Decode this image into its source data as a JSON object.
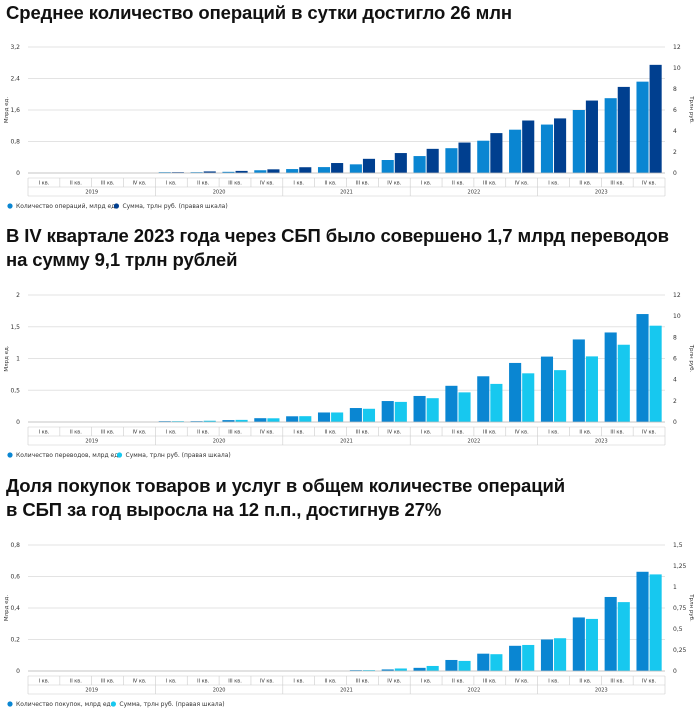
{
  "colors": {
    "dark_blue": "#003f8f",
    "mid_blue": "#0a86d2",
    "cyan": "#17c8ef",
    "grid": "#e3e3e3",
    "text": "#333333"
  },
  "quarters": [
    "I кв.",
    "II кв.",
    "III кв.",
    "IV кв."
  ],
  "years": [
    "2019",
    "2020",
    "2021",
    "2022",
    "2023"
  ],
  "chart_data": [
    {
      "type": "bar",
      "title": "Среднее количество операций в сутки достигло 26 млн",
      "ylabel": "Млрд ед.",
      "y2label": "Трлн руб.",
      "ylim": [
        0,
        3.2
      ],
      "y_ticks": [
        "0",
        "0,8",
        "1,6",
        "2,4",
        "3,2"
      ],
      "y2lim": [
        0,
        12
      ],
      "y2_ticks": [
        "0",
        "2",
        "4",
        "6",
        "8",
        "10",
        "12"
      ],
      "series": [
        {
          "name": "Количество операций, млрд ед.",
          "color": "#0a86d2",
          "axis": "left",
          "values": [
            0,
            0,
            0,
            0,
            0.002,
            0.01,
            0.03,
            0.07,
            0.1,
            0.15,
            0.22,
            0.33,
            0.43,
            0.63,
            0.82,
            1.1,
            1.23,
            1.6,
            1.9,
            2.32
          ]
        },
        {
          "name": "Сумма, трлн руб. (правая шкала)",
          "color": "#003f8f",
          "axis": "right",
          "values": [
            0,
            0,
            0,
            0,
            0.05,
            0.15,
            0.2,
            0.35,
            0.55,
            0.95,
            1.35,
            1.9,
            2.3,
            2.9,
            3.8,
            5.0,
            5.2,
            6.9,
            8.2,
            10.3
          ]
        }
      ]
    },
    {
      "type": "bar",
      "title": "В IV квартале 2023 года через СБП было совершено 1,7 млрд переводов на сумму 9,1 трлн рублей",
      "title_lines": [
        "В IV квартале 2023 года через СБП было совершено 1,7 млрд переводов",
        "на сумму 9,1 трлн рублей"
      ],
      "ylabel": "Млрд ед.",
      "y2label": "Трлн руб.",
      "ylim": [
        0,
        2
      ],
      "y_ticks": [
        "0",
        "0,5",
        "1",
        "1,5",
        "2"
      ],
      "y2lim": [
        0,
        12
      ],
      "y2_ticks": [
        "0",
        "2",
        "4",
        "6",
        "8",
        "10",
        "12"
      ],
      "series": [
        {
          "name": "Количество переводов, млрд ед.",
          "color": "#0a86d2",
          "axis": "left",
          "values": [
            0,
            0,
            0,
            0,
            0.003,
            0.01,
            0.03,
            0.06,
            0.09,
            0.15,
            0.22,
            0.33,
            0.41,
            0.57,
            0.72,
            0.93,
            1.03,
            1.3,
            1.41,
            1.7
          ]
        },
        {
          "name": "Сумма, трлн руб. (правая шкала)",
          "color": "#17c8ef",
          "axis": "right",
          "values": [
            0,
            0,
            0,
            0,
            0.05,
            0.12,
            0.2,
            0.35,
            0.55,
            0.9,
            1.25,
            1.9,
            2.25,
            2.8,
            3.6,
            4.6,
            4.9,
            6.2,
            7.3,
            9.1
          ]
        }
      ]
    },
    {
      "type": "bar",
      "title": "Доля покупок товаров и услуг в общем количестве операций в СБП за год выросла на 12 п.п., достигнув 27%",
      "title_lines": [
        "Доля покупок товаров и услуг в общем количестве операций",
        "в СБП за год выросла на 12 п.п., достигнув 27%"
      ],
      "ylabel": "Млрд ед.",
      "y2label": "Трлн руб.",
      "ylim": [
        0,
        0.8
      ],
      "y_ticks": [
        "0",
        "0,2",
        "0,4",
        "0,6",
        "0,8"
      ],
      "y2lim": [
        0,
        1.5
      ],
      "y2_ticks": [
        "0",
        "0,25",
        "0,5",
        "0,75",
        "1",
        "1,25",
        "1,5"
      ],
      "series": [
        {
          "name": "Количество покупок, млрд ед.",
          "color": "#0a86d2",
          "axis": "left",
          "values": [
            0,
            0,
            0,
            0,
            0,
            0,
            0,
            0,
            0,
            0,
            0.004,
            0.01,
            0.02,
            0.07,
            0.11,
            0.16,
            0.2,
            0.34,
            0.47,
            0.63
          ]
        },
        {
          "name": "Сумма, трлн руб. (правая шкала)",
          "color": "#17c8ef",
          "axis": "right",
          "values": [
            0,
            0,
            0,
            0,
            0,
            0,
            0,
            0,
            0,
            0,
            0.01,
            0.03,
            0.06,
            0.12,
            0.2,
            0.31,
            0.39,
            0.62,
            0.82,
            1.15
          ]
        }
      ]
    }
  ]
}
